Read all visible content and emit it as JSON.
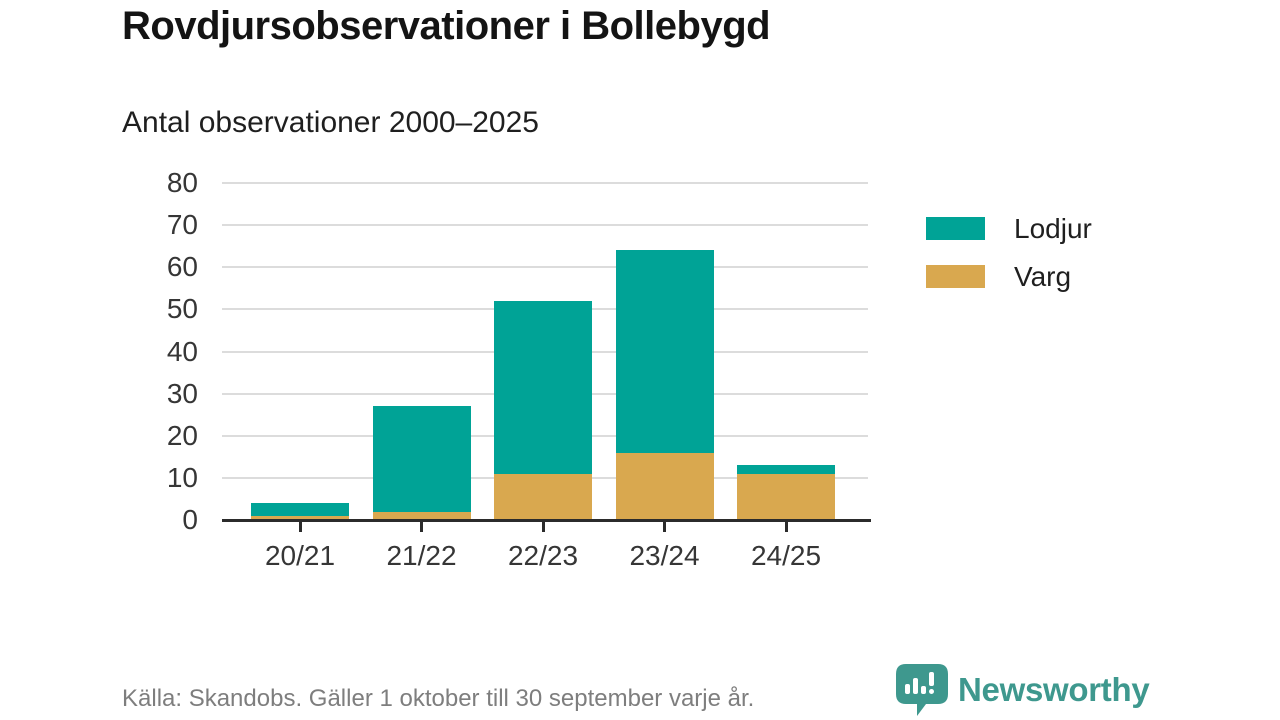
{
  "title": "Rovdjursobservationer i Bollebygd",
  "subtitle": "Antal observationer 2000–2025",
  "footer": {
    "source": "Källa: Skandobs. Gäller 1 oktober till 30 september varje år."
  },
  "logo": {
    "text": "Newsworthy",
    "color": "#3E988E",
    "icon": "newsworthy-speech-bubble-bar-chart-icon"
  },
  "colors": {
    "lodjur_teal": "#00A396",
    "varg_tan": "#D9A84F",
    "gridline": "#DCDCDC",
    "axis": "#2B2B2B",
    "tick_text": "#363636",
    "footer_text": "#7E7E7E"
  },
  "chart_data": {
    "type": "bar",
    "stacked": true,
    "title": "Rovdjursobservationer i Bollebygd",
    "subtitle": "Antal observationer 2000–2025",
    "categories": [
      "20/21",
      "21/22",
      "22/23",
      "23/24",
      "24/25"
    ],
    "series": [
      {
        "name": "Lodjur",
        "color": "#00A396",
        "values": [
          3,
          25,
          41,
          48,
          2
        ]
      },
      {
        "name": "Varg",
        "color": "#D9A84F",
        "values": [
          1,
          2,
          11,
          16,
          11
        ]
      }
    ],
    "stack_order_bottom_to_top": [
      "Varg",
      "Lodjur"
    ],
    "totals": [
      4,
      27,
      52,
      64,
      13
    ],
    "xlabel": "",
    "ylabel": "",
    "ylim": [
      0,
      80
    ],
    "yticks": [
      0,
      10,
      20,
      30,
      40,
      50,
      60,
      70,
      80
    ],
    "grid": true,
    "legend_position": "right"
  }
}
